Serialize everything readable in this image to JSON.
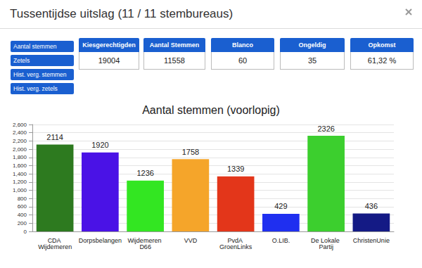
{
  "header": {
    "title": "Tussentijdse uitslag (11 / 11 stembureaus)"
  },
  "buttons": [
    "Aantal stemmen",
    "Zetels",
    "Hist. verg. stemmen",
    "Hist. verg. zetels"
  ],
  "stats": [
    {
      "label": "Kiesgerechtigden",
      "value": "19004"
    },
    {
      "label": "Aantal Stemmen",
      "value": "11558"
    },
    {
      "label": "Blanco",
      "value": "60"
    },
    {
      "label": "Ongeldig",
      "value": "35"
    },
    {
      "label": "Opkomst",
      "value": "61,32 %"
    }
  ],
  "chart_data": {
    "type": "bar",
    "title": "Aantal stemmen (voorlopig)",
    "categories": [
      "CDA Wijdemeren",
      "Dorpsbelangen",
      "Wijdemeren D66",
      "VVD",
      "PvdA GroenLinks",
      "O.LIB.",
      "De Lokale Partij",
      "ChristenUnie"
    ],
    "values": [
      2114,
      1920,
      1236,
      1758,
      1339,
      429,
      2326,
      436
    ],
    "colors": [
      "#2d7a1f",
      "#4a12e6",
      "#33e622",
      "#f5a52a",
      "#e3361a",
      "#1f2ff0",
      "#3ccf2e",
      "#141a85"
    ],
    "ylim": [
      0,
      2600
    ],
    "yticks": [
      0,
      200,
      400,
      600,
      800,
      {
        "value": 1000,
        "label": "1,000"
      },
      {
        "value": 1200,
        "label": "1,200"
      },
      {
        "value": 1400,
        "label": "1,400"
      },
      {
        "value": 1600,
        "label": "1,600"
      },
      {
        "value": 1800,
        "label": "1,800"
      },
      {
        "value": 2000,
        "label": "2,000"
      },
      {
        "value": 2200,
        "label": "2,200"
      },
      {
        "value": 2400,
        "label": "2,400"
      },
      {
        "value": 2600,
        "label": "2,600"
      }
    ],
    "grid": true,
    "data_labels": true
  }
}
